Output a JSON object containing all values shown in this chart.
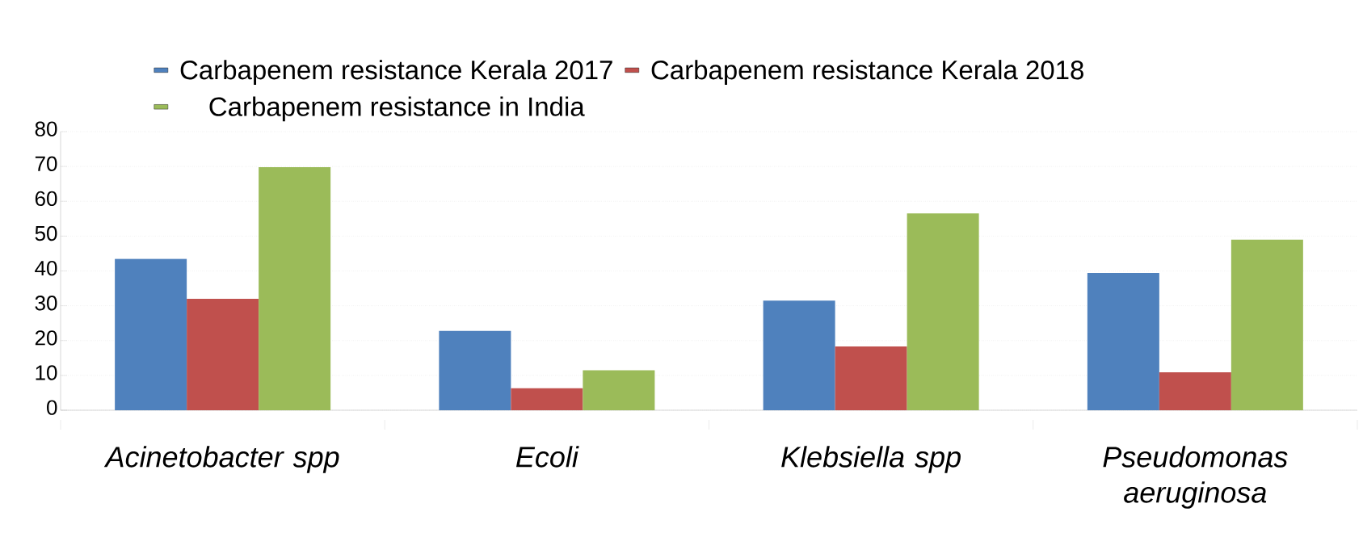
{
  "chart_data": {
    "type": "bar",
    "categories": [
      "Acinetobacter spp",
      "Ecoli",
      "Klebsiella spp",
      "Pseudomonas aeruginosa"
    ],
    "series": [
      {
        "name": "Carbapenem resistance Kerala 2017",
        "color": "#4f81bd",
        "values": [
          43.5,
          22.8,
          31.5,
          39.4
        ]
      },
      {
        "name": "Carbapenem  resistance Kerala 2018",
        "color": "#c0504d",
        "values": [
          32,
          6.3,
          18.3,
          10.9
        ]
      },
      {
        "name": "Carbapenem resistance in India",
        "color": "#9bbb59",
        "values": [
          69.8,
          11.5,
          56.5,
          49
        ]
      }
    ],
    "ylim": [
      0,
      80
    ],
    "yticks": [
      0,
      10,
      20,
      30,
      40,
      50,
      60,
      70,
      80
    ],
    "grid": "y",
    "legend": "top"
  }
}
